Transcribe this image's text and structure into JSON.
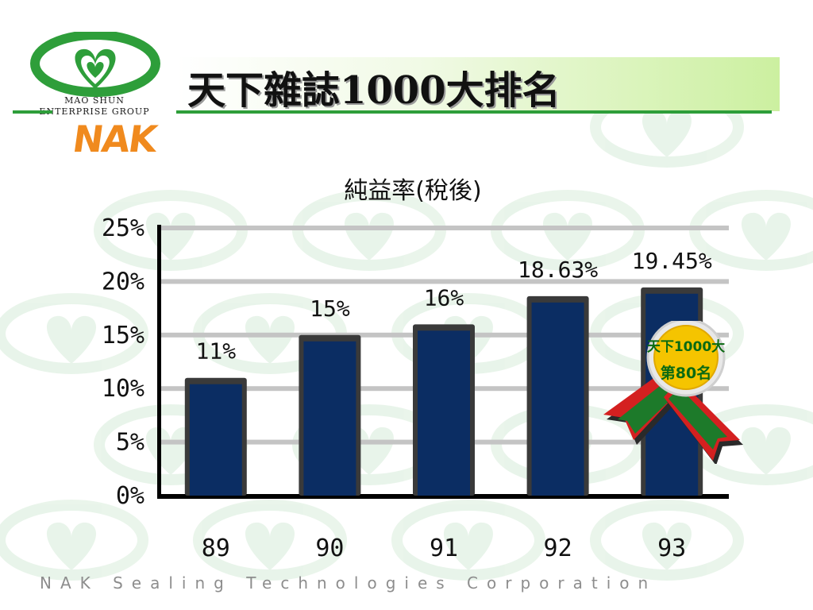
{
  "title": "天下雜誌1000大排名",
  "logo": {
    "line1": "MAO SHUN",
    "line2": "ENTERPRISE GROUP",
    "brand": "NAK"
  },
  "footer": "NAK Sealing Technologies Corporation",
  "medal": {
    "line1": "天下1000大",
    "line2": "第80名"
  },
  "colors": {
    "bar": "#0b2d63",
    "bar_edge": "#3a3a3a",
    "grid": "#c4c4c4",
    "green": "#2e9e3a",
    "orange": "#f08a1e",
    "medal_gold": "#f5c400"
  },
  "chart_data": {
    "type": "bar",
    "title": "純益率(稅後)",
    "categories": [
      "89",
      "90",
      "91",
      "92",
      "93"
    ],
    "values": [
      11,
      15,
      16,
      18.63,
      19.45
    ],
    "value_labels": [
      "11%",
      "15%",
      "16%",
      "18.63%",
      "19.45%"
    ],
    "yticks": [
      "0%",
      "5%",
      "10%",
      "15%",
      "20%",
      "25%"
    ],
    "ylim": [
      0,
      25
    ],
    "grid": true,
    "legend": "none"
  }
}
